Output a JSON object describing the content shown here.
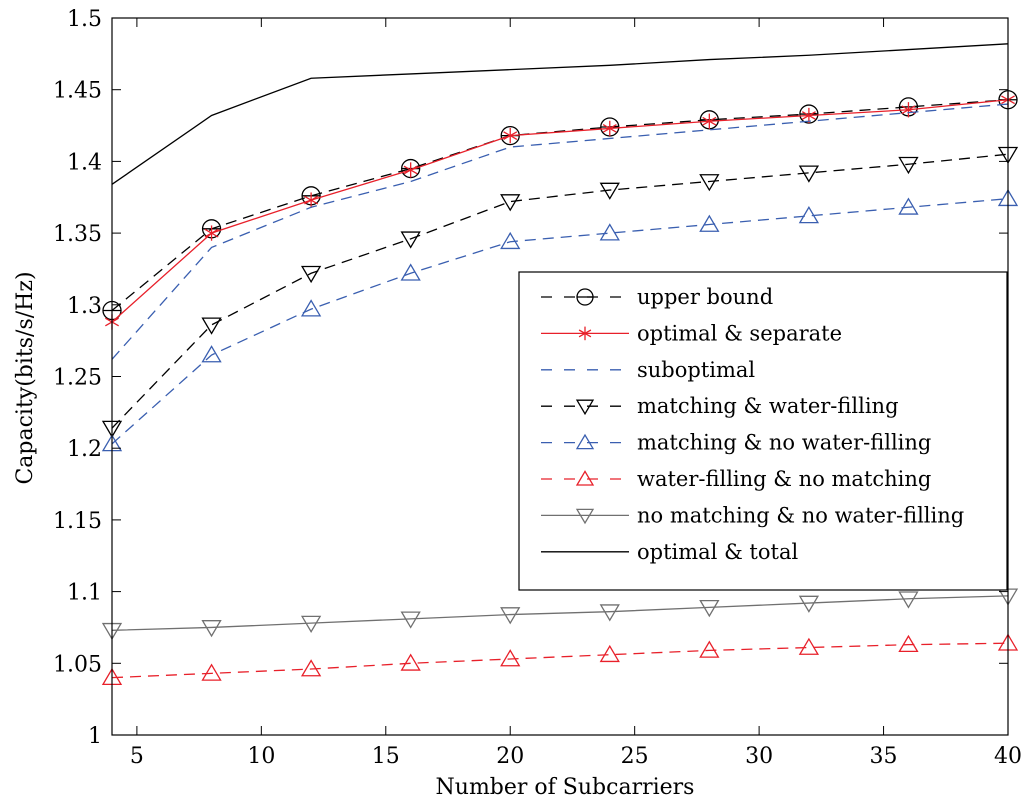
{
  "chart_data": {
    "type": "line",
    "xlabel": "Number of Subcarriers",
    "ylabel": "Capacity(bits/s/Hz)",
    "xlim": [
      4,
      40
    ],
    "ylim": [
      1,
      1.5
    ],
    "xticks": [
      5,
      10,
      15,
      20,
      25,
      30,
      35,
      40
    ],
    "yticks": [
      1,
      1.05,
      1.1,
      1.15,
      1.2,
      1.25,
      1.3,
      1.35,
      1.4,
      1.45,
      1.5
    ],
    "ytick_labels": [
      "1",
      "1.05",
      "1.1",
      "1.15",
      "1.2",
      "1.25",
      "1.3",
      "1.35",
      "1.4",
      "1.45",
      "1.5"
    ],
    "grid": false,
    "legend_position": "right",
    "x": [
      4,
      8,
      12,
      16,
      20,
      24,
      28,
      32,
      36,
      40
    ],
    "series": [
      {
        "name": "upper bound",
        "color": "#000000",
        "dash": "dashed",
        "marker": "circle",
        "values": [
          1.296,
          1.353,
          1.376,
          1.395,
          1.418,
          1.424,
          1.429,
          1.433,
          1.438,
          1.443
        ]
      },
      {
        "name": "optimal & separate",
        "color": "#e8202a",
        "dash": "solid",
        "marker": "star",
        "values": [
          1.288,
          1.35,
          1.373,
          1.394,
          1.418,
          1.423,
          1.428,
          1.432,
          1.436,
          1.443
        ]
      },
      {
        "name": "suboptimal",
        "color": "#3a5fb0",
        "dash": "dashed",
        "marker": "none",
        "values": [
          1.262,
          1.34,
          1.368,
          1.386,
          1.41,
          1.416,
          1.422,
          1.428,
          1.434,
          1.44
        ]
      },
      {
        "name": "matching & water-filling",
        "color": "#000000",
        "dash": "dashed",
        "marker": "triangle-down",
        "values": [
          1.214,
          1.286,
          1.322,
          1.346,
          1.372,
          1.38,
          1.386,
          1.392,
          1.398,
          1.405
        ]
      },
      {
        "name": "matching & no water-filling",
        "color": "#3a5fb0",
        "dash": "dashed",
        "marker": "triangle-up",
        "values": [
          1.203,
          1.265,
          1.297,
          1.322,
          1.344,
          1.35,
          1.356,
          1.362,
          1.368,
          1.374
        ]
      },
      {
        "name": "water-filling & no matching",
        "color": "#e8202a",
        "dash": "dashed",
        "marker": "triangle-up",
        "values": [
          1.04,
          1.043,
          1.046,
          1.05,
          1.053,
          1.056,
          1.059,
          1.061,
          1.063,
          1.064
        ]
      },
      {
        "name": "no matching & no water-filling",
        "color": "#707070",
        "dash": "solid",
        "marker": "triangle-down",
        "values": [
          1.073,
          1.075,
          1.078,
          1.081,
          1.084,
          1.086,
          1.089,
          1.092,
          1.095,
          1.097
        ]
      },
      {
        "name": "optimal & total",
        "color": "#000000",
        "dash": "solid",
        "marker": "none",
        "values": [
          1.384,
          1.432,
          1.458,
          1.461,
          1.464,
          1.467,
          1.471,
          1.474,
          1.478,
          1.482
        ]
      }
    ]
  }
}
